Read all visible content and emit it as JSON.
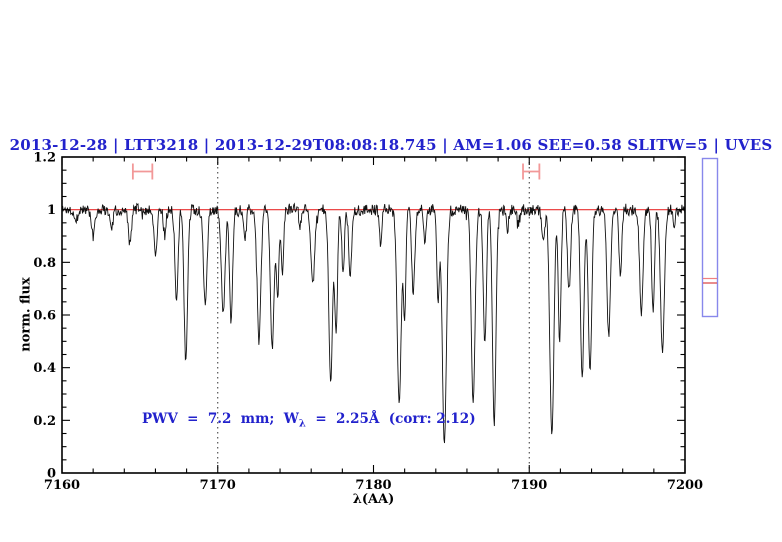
{
  "title": {
    "text": "2013-12-28 | LTT3218 | 2013-12-29T08:08:18.745 | AM=1.06 SEE=0.58 SLITW=5 | UVES",
    "color": "#2222cc"
  },
  "annotation": {
    "prefix": "PWV  =  7.2  mm;  W",
    "subscript": "λ",
    "suffix": "  =  2.25Å  (corr: 2.12)",
    "color": "#2222cc"
  },
  "axes": {
    "xlabel": "λ(AA)",
    "ylabel": "norm. flux"
  },
  "chart_data": {
    "type": "line",
    "title": "2013-12-28 | LTT3218 | 2013-12-29T08:08:18.745 | AM=1.06 SEE=0.58 SLITW=5 | UVES",
    "xlabel": "λ(AA)",
    "ylabel": "norm. flux",
    "xlim": [
      7160,
      7200
    ],
    "ylim": [
      0,
      1.2
    ],
    "x_axis": {
      "ticks": [
        {
          "v": 7160,
          "label": "7160"
        },
        {
          "v": 7170,
          "label": "7170"
        },
        {
          "v": 7180,
          "label": "7180"
        },
        {
          "v": 7190,
          "label": "7190"
        },
        {
          "v": 7200,
          "label": "7200"
        }
      ],
      "minor_step": 2
    },
    "y_axis": {
      "ticks": [
        {
          "v": 0,
          "label": "0"
        },
        {
          "v": 0.2,
          "label": "0.2"
        },
        {
          "v": 0.4,
          "label": "0.4"
        },
        {
          "v": 0.6,
          "label": "0.6"
        },
        {
          "v": 0.8,
          "label": "0.8"
        },
        {
          "v": 1,
          "label": "1"
        },
        {
          "v": 1.2,
          "label": "1.2"
        }
      ],
      "minor_step": 0.05
    },
    "continuum_level": 1.0,
    "noise_rms": 0.013,
    "reference_line_y": 1.0,
    "dotted_vlines_x": [
      7170,
      7190
    ],
    "range_markers": [
      {
        "x1": 7164.55,
        "x2": 7165.8,
        "y": 1.145
      },
      {
        "x1": 7189.6,
        "x2": 7190.65,
        "y": 1.145
      }
    ],
    "absorption_lines_format": [
      "center_AA",
      "depth_normflux",
      "sigma_AA"
    ],
    "absorption_lines": [
      [
        7160.9,
        0.05,
        0.08
      ],
      [
        7162.0,
        0.1,
        0.1
      ],
      [
        7163.2,
        0.07,
        0.08
      ],
      [
        7164.35,
        0.13,
        0.1
      ],
      [
        7166.0,
        0.16,
        0.1
      ],
      [
        7166.6,
        0.1,
        0.08
      ],
      [
        7167.35,
        0.34,
        0.1
      ],
      [
        7167.95,
        0.58,
        0.11
      ],
      [
        7169.2,
        0.35,
        0.12
      ],
      [
        7170.35,
        0.4,
        0.12
      ],
      [
        7170.85,
        0.42,
        0.1
      ],
      [
        7171.75,
        0.12,
        0.08
      ],
      [
        7172.65,
        0.49,
        0.12
      ],
      [
        7173.5,
        0.52,
        0.12
      ],
      [
        7173.85,
        0.33,
        0.08
      ],
      [
        7174.15,
        0.25,
        0.08
      ],
      [
        7175.3,
        0.06,
        0.08
      ],
      [
        7176.1,
        0.29,
        0.12
      ],
      [
        7177.25,
        0.65,
        0.12
      ],
      [
        7177.6,
        0.45,
        0.09
      ],
      [
        7178.05,
        0.24,
        0.08
      ],
      [
        7178.5,
        0.27,
        0.09
      ],
      [
        7180.45,
        0.12,
        0.08
      ],
      [
        7181.65,
        0.73,
        0.13
      ],
      [
        7182.0,
        0.4,
        0.08
      ],
      [
        7182.55,
        0.31,
        0.1
      ],
      [
        7183.3,
        0.13,
        0.08
      ],
      [
        7184.15,
        0.35,
        0.08
      ],
      [
        7184.55,
        0.89,
        0.13
      ],
      [
        7186.4,
        0.74,
        0.12
      ],
      [
        7187.15,
        0.5,
        0.1
      ],
      [
        7187.75,
        0.82,
        0.11
      ],
      [
        7188.6,
        0.07,
        0.08
      ],
      [
        7189.3,
        0.05,
        0.08
      ],
      [
        7190.9,
        0.1,
        0.1
      ],
      [
        7191.45,
        0.86,
        0.13
      ],
      [
        7191.95,
        0.5,
        0.09
      ],
      [
        7192.55,
        0.31,
        0.1
      ],
      [
        7193.4,
        0.64,
        0.11
      ],
      [
        7193.9,
        0.62,
        0.11
      ],
      [
        7195.1,
        0.48,
        0.11
      ],
      [
        7195.85,
        0.24,
        0.09
      ],
      [
        7197.2,
        0.39,
        0.11
      ],
      [
        7197.95,
        0.38,
        0.09
      ],
      [
        7198.55,
        0.54,
        0.12
      ],
      [
        7199.3,
        0.06,
        0.08
      ]
    ],
    "colors": {
      "spectrum": "#111111",
      "reference_line": "#e83030",
      "range_marker": "#f29898",
      "dotted_line": "#333333",
      "frame": "#000000"
    },
    "legend": null,
    "grid": false
  },
  "side_gauge": {
    "border_color": "#8888eb",
    "line1_color": "#f08080",
    "line2_color": "#d84040"
  }
}
